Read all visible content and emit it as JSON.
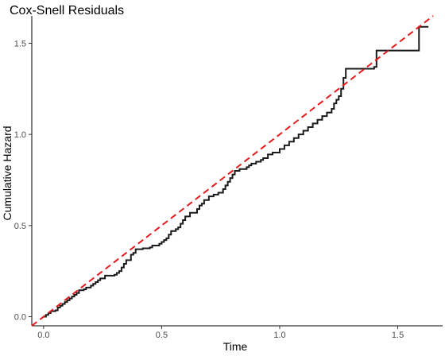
{
  "chart_data": {
    "type": "line",
    "title": "Cox-Snell Residuals",
    "xlabel": "Time",
    "ylabel": "Cumulative Hazard",
    "xlim": [
      -0.05,
      1.69
    ],
    "ylim": [
      -0.05,
      1.65
    ],
    "grid": false,
    "legend": "none",
    "x_ticks": [
      {
        "value": 0.0,
        "label": "0.0"
      },
      {
        "value": 0.5,
        "label": "0.5"
      },
      {
        "value": 1.0,
        "label": "1.0"
      },
      {
        "value": 1.5,
        "label": "1.5"
      }
    ],
    "y_ticks": [
      {
        "value": 0.0,
        "label": "0.0"
      },
      {
        "value": 0.5,
        "label": "0.5"
      },
      {
        "value": 1.0,
        "label": "1.0"
      },
      {
        "value": 1.5,
        "label": "1.5"
      }
    ],
    "series": [
      {
        "style": "step",
        "color": "#1a1a1a",
        "points": [
          [
            0.0,
            0.0
          ],
          [
            0.01,
            0.01
          ],
          [
            0.02,
            0.02
          ],
          [
            0.03,
            0.03
          ],
          [
            0.05,
            0.035
          ],
          [
            0.06,
            0.05
          ],
          [
            0.07,
            0.06
          ],
          [
            0.08,
            0.07
          ],
          [
            0.09,
            0.08
          ],
          [
            0.1,
            0.09
          ],
          [
            0.11,
            0.1
          ],
          [
            0.12,
            0.11
          ],
          [
            0.13,
            0.12
          ],
          [
            0.14,
            0.13
          ],
          [
            0.15,
            0.145
          ],
          [
            0.17,
            0.15
          ],
          [
            0.18,
            0.16
          ],
          [
            0.2,
            0.17
          ],
          [
            0.21,
            0.18
          ],
          [
            0.22,
            0.19
          ],
          [
            0.23,
            0.2
          ],
          [
            0.24,
            0.21
          ],
          [
            0.26,
            0.225
          ],
          [
            0.3,
            0.23
          ],
          [
            0.31,
            0.24
          ],
          [
            0.32,
            0.25
          ],
          [
            0.33,
            0.27
          ],
          [
            0.34,
            0.29
          ],
          [
            0.35,
            0.31
          ],
          [
            0.37,
            0.34
          ],
          [
            0.38,
            0.35
          ],
          [
            0.39,
            0.37
          ],
          [
            0.42,
            0.375
          ],
          [
            0.45,
            0.38
          ],
          [
            0.46,
            0.39
          ],
          [
            0.49,
            0.4
          ],
          [
            0.5,
            0.41
          ],
          [
            0.51,
            0.42
          ],
          [
            0.52,
            0.43
          ],
          [
            0.53,
            0.45
          ],
          [
            0.54,
            0.47
          ],
          [
            0.56,
            0.48
          ],
          [
            0.57,
            0.49
          ],
          [
            0.58,
            0.51
          ],
          [
            0.59,
            0.53
          ],
          [
            0.6,
            0.55
          ],
          [
            0.62,
            0.57
          ],
          [
            0.65,
            0.59
          ],
          [
            0.66,
            0.61
          ],
          [
            0.67,
            0.62
          ],
          [
            0.68,
            0.64
          ],
          [
            0.7,
            0.66
          ],
          [
            0.72,
            0.67
          ],
          [
            0.74,
            0.68
          ],
          [
            0.76,
            0.7
          ],
          [
            0.77,
            0.72
          ],
          [
            0.78,
            0.74
          ],
          [
            0.79,
            0.76
          ],
          [
            0.8,
            0.78
          ],
          [
            0.81,
            0.8
          ],
          [
            0.83,
            0.81
          ],
          [
            0.86,
            0.82
          ],
          [
            0.87,
            0.83
          ],
          [
            0.88,
            0.84
          ],
          [
            0.9,
            0.85
          ],
          [
            0.92,
            0.86
          ],
          [
            0.93,
            0.87
          ],
          [
            0.95,
            0.89
          ],
          [
            0.97,
            0.9
          ],
          [
            1.0,
            0.92
          ],
          [
            1.02,
            0.94
          ],
          [
            1.04,
            0.96
          ],
          [
            1.06,
            0.98
          ],
          [
            1.08,
            1.0
          ],
          [
            1.1,
            1.02
          ],
          [
            1.12,
            1.04
          ],
          [
            1.14,
            1.06
          ],
          [
            1.16,
            1.08
          ],
          [
            1.18,
            1.1
          ],
          [
            1.2,
            1.12
          ],
          [
            1.22,
            1.14
          ],
          [
            1.23,
            1.17
          ],
          [
            1.24,
            1.19
          ],
          [
            1.25,
            1.21
          ],
          [
            1.26,
            1.25
          ],
          [
            1.27,
            1.31
          ],
          [
            1.28,
            1.36
          ],
          [
            1.4,
            1.37
          ],
          [
            1.41,
            1.46
          ],
          [
            1.59,
            1.59
          ],
          [
            1.63,
            1.59
          ]
        ]
      },
      {
        "style": "dashed",
        "color": "#e41a1c",
        "points": [
          [
            -0.05,
            -0.05
          ],
          [
            1.65,
            1.65
          ]
        ]
      }
    ]
  }
}
